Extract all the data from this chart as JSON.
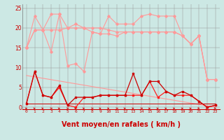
{
  "bg_color": "#cce8e4",
  "grid_color": "#999999",
  "xlabel": "Vent moyen/en rafales ( km/h )",
  "xlabel_color": "#cc0000",
  "xlabel_fontsize": 7,
  "ylabel_ticks": [
    0,
    5,
    10,
    15,
    20,
    25
  ],
  "xlim": [
    -0.5,
    23.5
  ],
  "ylim": [
    -0.5,
    26
  ],
  "x": [
    0,
    1,
    2,
    3,
    4,
    5,
    6,
    7,
    8,
    9,
    10,
    11,
    12,
    13,
    14,
    15,
    16,
    17,
    18,
    19,
    20,
    21,
    22,
    23
  ],
  "pink_color": "#ff9999",
  "red_color": "#ff2020",
  "darkred_color": "#cc0000",
  "rafales_top": [
    15,
    23,
    19.5,
    23.5,
    23.5,
    20,
    21,
    20,
    19,
    18.5,
    23,
    21,
    21,
    21,
    23,
    23.5,
    23,
    23,
    23,
    18,
    16,
    18,
    7,
    7
  ],
  "rafales_mid": [
    15,
    19.5,
    19.5,
    14,
    23.5,
    10.5,
    11,
    9,
    19,
    18.5,
    18.5,
    18,
    19,
    19,
    19,
    19,
    19,
    19,
    19,
    18,
    16,
    18,
    7,
    7
  ],
  "mean_line": [
    15,
    19.5,
    19.5,
    19.5,
    19.5,
    20,
    20,
    20,
    20,
    20,
    19.5,
    19,
    19,
    19,
    19,
    19,
    19,
    19,
    19,
    18,
    16,
    18,
    7,
    7
  ],
  "trend_line": [
    8.0,
    7.65,
    7.3,
    6.96,
    6.61,
    6.26,
    5.91,
    5.57,
    5.22,
    4.87,
    4.52,
    4.17,
    3.83,
    3.48,
    3.13,
    2.78,
    2.43,
    2.09,
    1.74,
    1.39,
    1.04,
    0.7,
    0.35,
    0.0
  ],
  "flat_line": [
    1,
    1,
    1,
    1,
    1,
    1,
    1,
    1,
    1,
    1,
    1,
    1,
    1,
    1,
    1,
    1,
    1,
    1,
    1,
    1,
    1,
    1,
    1,
    1
  ],
  "wind_speed": [
    1,
    9,
    3,
    2.5,
    5,
    0.5,
    0,
    2.5,
    2.5,
    3,
    3,
    3,
    3,
    3,
    3,
    6.5,
    2.5,
    4,
    3,
    3,
    3,
    1.5,
    0,
    0.5
  ],
  "wind_gust": [
    1,
    9,
    3,
    2.5,
    5.5,
    0.5,
    2.5,
    2.5,
    2.5,
    3,
    3,
    3,
    3,
    8.5,
    3,
    6.5,
    6.5,
    4,
    3,
    4,
    3,
    1.5,
    0,
    0.5
  ],
  "arrow_angles": [
    45,
    45,
    45,
    90,
    45,
    90,
    45,
    45,
    90,
    45,
    45,
    90,
    45,
    45,
    90,
    45,
    45,
    45,
    45,
    45,
    45,
    135,
    135,
    135
  ]
}
